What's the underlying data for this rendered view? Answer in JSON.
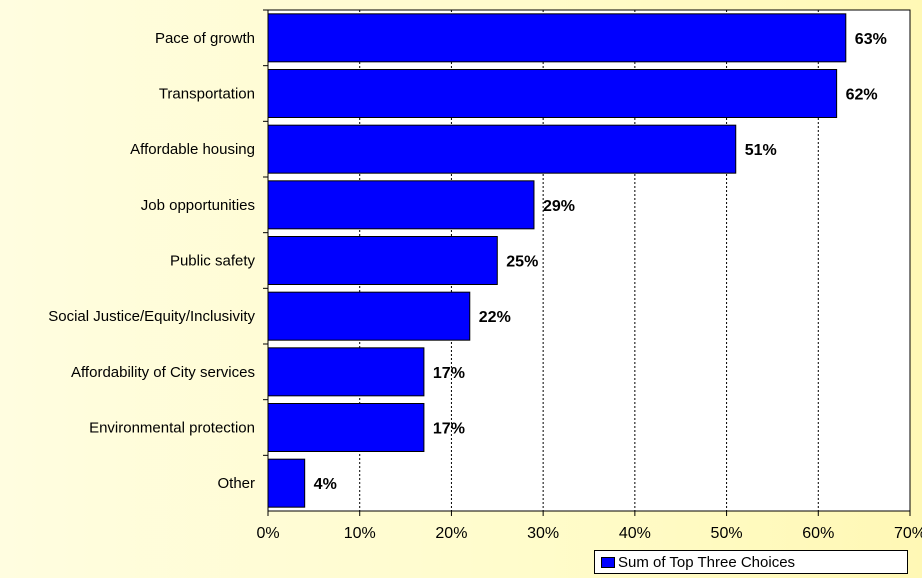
{
  "chart_data": {
    "type": "bar",
    "orientation": "horizontal",
    "categories": [
      "Pace of growth",
      "Transportation",
      "Affordable housing",
      "Job opportunities",
      "Public safety",
      "Social Justice/Equity/Inclusivity",
      "Affordability of City services",
      "Environmental protection",
      "Other"
    ],
    "series": [
      {
        "name": "Sum of Top Three Choices",
        "values": [
          63,
          62,
          51,
          29,
          25,
          22,
          17,
          17,
          4
        ],
        "labels": [
          "63%",
          "62%",
          "51%",
          "29%",
          "25%",
          "22%",
          "17%",
          "17%",
          "4%"
        ],
        "color": "#0000ff"
      }
    ],
    "xlim": [
      0,
      70
    ],
    "xticks": [
      "0%",
      "10%",
      "20%",
      "30%",
      "40%",
      "50%",
      "60%",
      "70%"
    ],
    "grid": "vertical-dotted",
    "legend_position": "bottom-right",
    "title": "",
    "xlabel": "",
    "ylabel": "",
    "colors": {
      "bar": "#0000ff",
      "plot_background": "#ffffff"
    }
  }
}
